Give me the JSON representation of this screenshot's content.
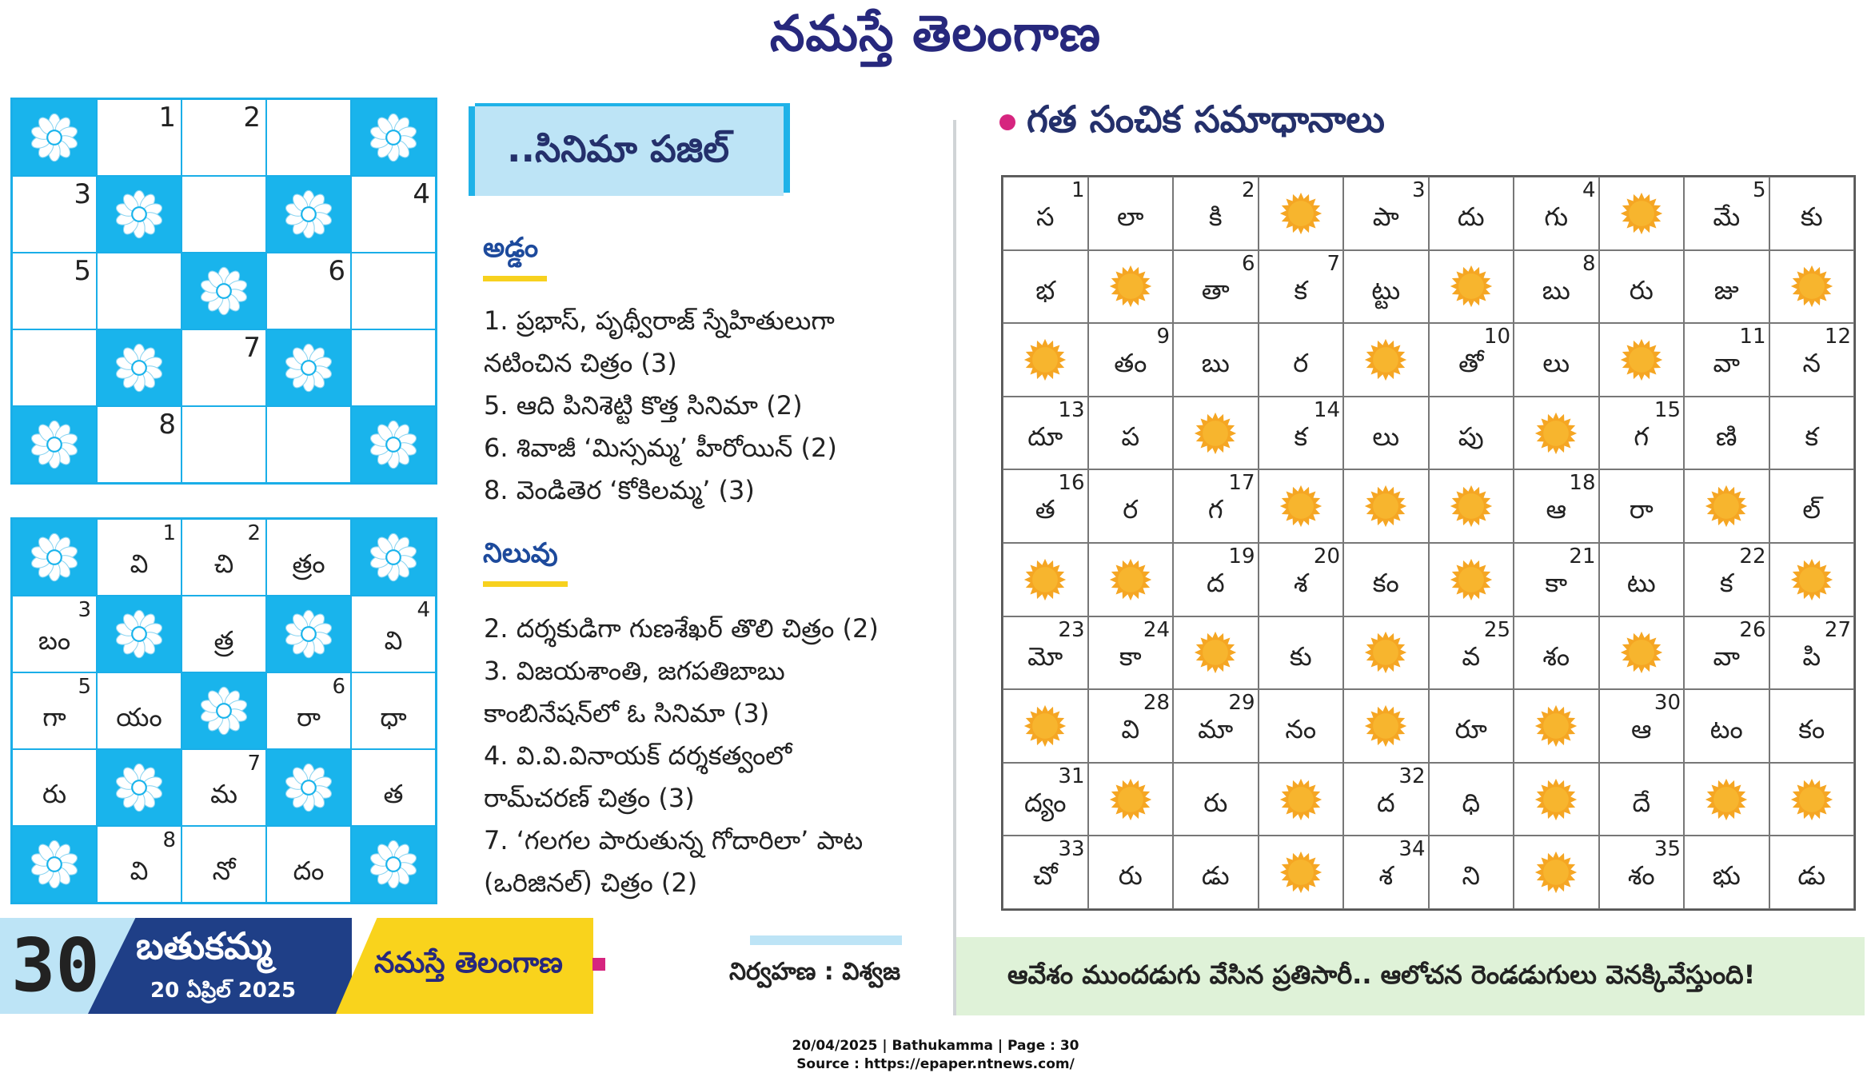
{
  "masthead": "నమస్తే తెలంగాణ",
  "puzzle": {
    "title": "..సినిమా పజిల్",
    "grid_cells": [
      {
        "t": "b"
      },
      {
        "t": "w",
        "n": "1"
      },
      {
        "t": "w",
        "n": "2"
      },
      {
        "t": "w"
      },
      {
        "t": "b"
      },
      {
        "t": "w",
        "n": "3"
      },
      {
        "t": "b"
      },
      {
        "t": "w"
      },
      {
        "t": "b"
      },
      {
        "t": "w",
        "n": "4"
      },
      {
        "t": "w",
        "n": "5"
      },
      {
        "t": "w"
      },
      {
        "t": "b"
      },
      {
        "t": "w",
        "n": "6"
      },
      {
        "t": "w"
      },
      {
        "t": "w"
      },
      {
        "t": "b"
      },
      {
        "t": "w",
        "n": "7"
      },
      {
        "t": "b"
      },
      {
        "t": "w"
      },
      {
        "t": "b"
      },
      {
        "t": "w",
        "n": "8"
      },
      {
        "t": "w"
      },
      {
        "t": "w"
      },
      {
        "t": "b"
      }
    ],
    "across_heading": "అడ్డం",
    "across": [
      "1. ప్రభాస్, పృథ్వీరాజ్ స్నేహితులుగా",
      "    నటించిన చిత్రం (3)",
      "5. ఆది పినిశెట్టి కొత్త సినిమా (2)",
      "6. శివాజీ ‘మిస్సమ్మ’ హీరోయిన్ (2)",
      "8. వెండితెర ‘కోకిలమ్మ’ (3)"
    ],
    "down_heading": "నిలువు",
    "down": [
      "2. దర్శకుడిగా గుణశేఖర్ తొలి చిత్రం (2)",
      "3. విజయశాంతి, జగపతిబాబు",
      "    కాంబినేషన్‌లో ఓ సినిమా (3)",
      "4. వి.వి.వినాయక్ దర్శకత్వంలో",
      "    రామ్‌చరణ్ చిత్రం (3)",
      "7. ‘గలగల పారుతున్న గోదారిలా’ పాట",
      "    (ఒరిజినల్) చిత్రం (2)"
    ]
  },
  "prev_small_solution": [
    {
      "t": "b"
    },
    {
      "t": "w",
      "n": "1",
      "c": "వి"
    },
    {
      "t": "w",
      "n": "2",
      "c": "చి"
    },
    {
      "t": "w",
      "c": "త్రం"
    },
    {
      "t": "b"
    },
    {
      "t": "w",
      "n": "3",
      "c": "బం"
    },
    {
      "t": "b"
    },
    {
      "t": "w",
      "c": "త్ర"
    },
    {
      "t": "b"
    },
    {
      "t": "w",
      "n": "4",
      "c": "వి"
    },
    {
      "t": "w",
      "n": "5",
      "c": "గా"
    },
    {
      "t": "w",
      "c": "యం"
    },
    {
      "t": "b"
    },
    {
      "t": "w",
      "n": "6",
      "c": "రా"
    },
    {
      "t": "w",
      "c": "ధా"
    },
    {
      "t": "w",
      "c": "రు"
    },
    {
      "t": "b"
    },
    {
      "t": "w",
      "n": "7",
      "c": "మ"
    },
    {
      "t": "b"
    },
    {
      "t": "w",
      "c": "త"
    },
    {
      "t": "b"
    },
    {
      "t": "w",
      "n": "8",
      "c": "వి"
    },
    {
      "t": "w",
      "c": "నో"
    },
    {
      "t": "w",
      "c": "దం"
    },
    {
      "t": "b"
    }
  ],
  "solutions": {
    "heading": "గత సంచిక సమాధానాలు",
    "cells": [
      [
        {
          "c": "స",
          "n": "1"
        },
        {
          "c": "లా"
        },
        {
          "c": "కి",
          "n": "2"
        },
        {
          "b": 1
        },
        {
          "c": "పా",
          "n": "3"
        },
        {
          "c": "దు"
        },
        {
          "c": "గు",
          "n": "4"
        },
        {
          "b": 1
        },
        {
          "c": "మే",
          "n": "5"
        },
        {
          "c": "కు"
        }
      ],
      [
        {
          "c": "భ"
        },
        {
          "b": 1
        },
        {
          "c": "తా",
          "n": "6"
        },
        {
          "c": "క",
          "n": "7"
        },
        {
          "c": "ట్టు"
        },
        {
          "b": 1
        },
        {
          "c": "బు",
          "n": "8"
        },
        {
          "c": "రు"
        },
        {
          "c": "జు"
        },
        {
          "b": 1
        }
      ],
      [
        {
          "b": 1
        },
        {
          "c": "తం",
          "n": "9"
        },
        {
          "c": "బు"
        },
        {
          "c": "ర"
        },
        {
          "b": 1
        },
        {
          "c": "తో",
          "n": "10"
        },
        {
          "c": "లు"
        },
        {
          "b": 1
        },
        {
          "c": "వా",
          "n": "11"
        },
        {
          "c": "న",
          "n": "12"
        }
      ],
      [
        {
          "c": "దూ",
          "n": "13"
        },
        {
          "c": "ప"
        },
        {
          "b": 1
        },
        {
          "c": "క",
          "n": "14"
        },
        {
          "c": "లు"
        },
        {
          "c": "పు"
        },
        {
          "b": 1
        },
        {
          "c": "గ",
          "n": "15"
        },
        {
          "c": "ణి"
        },
        {
          "c": "క"
        }
      ],
      [
        {
          "c": "త",
          "n": "16"
        },
        {
          "c": "ర"
        },
        {
          "c": "గ",
          "n": "17"
        },
        {
          "b": 1
        },
        {
          "b": 1
        },
        {
          "b": 1
        },
        {
          "c": "ఆ",
          "n": "18"
        },
        {
          "c": "రా"
        },
        {
          "b": 1
        },
        {
          "c": "ల్"
        }
      ],
      [
        {
          "b": 1
        },
        {
          "b": 1
        },
        {
          "c": "ద",
          "n": "19"
        },
        {
          "c": "శ",
          "n": "20"
        },
        {
          "c": "కం"
        },
        {
          "b": 1
        },
        {
          "c": "కా",
          "n": "21"
        },
        {
          "c": "టు"
        },
        {
          "c": "క",
          "n": "22"
        },
        {
          "b": 1
        }
      ],
      [
        {
          "c": "మో",
          "n": "23"
        },
        {
          "c": "కా",
          "n": "24"
        },
        {
          "b": 1
        },
        {
          "c": "కు"
        },
        {
          "b": 1
        },
        {
          "c": "వ",
          "n": "25"
        },
        {
          "c": "శం"
        },
        {
          "b": 1
        },
        {
          "c": "వా",
          "n": "26"
        },
        {
          "c": "పి",
          "n": "27"
        }
      ],
      [
        {
          "b": 1
        },
        {
          "c": "వి",
          "n": "28"
        },
        {
          "c": "మా",
          "n": "29"
        },
        {
          "c": "నం"
        },
        {
          "b": 1
        },
        {
          "c": "రూ"
        },
        {
          "b": 1
        },
        {
          "c": "ఆ",
          "n": "30"
        },
        {
          "c": "టం"
        },
        {
          "c": "కం"
        }
      ],
      [
        {
          "c": "ద్యం",
          "n": "31"
        },
        {
          "b": 1
        },
        {
          "c": "రు"
        },
        {
          "b": 1
        },
        {
          "c": "ద",
          "n": "32"
        },
        {
          "c": "ధి"
        },
        {
          "b": 1
        },
        {
          "c": "దే"
        },
        {
          "b": 1
        },
        {
          "b": 1
        }
      ],
      [
        {
          "c": "చో",
          "n": "33"
        },
        {
          "c": "రు"
        },
        {
          "c": "డు"
        },
        {
          "b": 1
        },
        {
          "c": "శ",
          "n": "34"
        },
        {
          "c": "ని"
        },
        {
          "b": 1
        },
        {
          "c": "శం",
          "n": "35"
        },
        {
          "c": "భు"
        },
        {
          "c": "డు"
        }
      ]
    ]
  },
  "quote": "ఆవేశం ముందడుగు వేసిన ప్రతిసారీ.. ఆలోచన రెండడుగులు వెనక్కివేస్తుంది!",
  "footer": {
    "page_number": "30",
    "section": "బతుకమ్మ",
    "date": "20 ఏప్రిల్ 2025",
    "brand": "నమస్తే తెలంగాణ",
    "credit": "నిర్వహణ : విశ్వజ"
  },
  "meta_line1": "20/04/2025 | Bathukamma | Page : 30",
  "meta_line2": "Source : https://epaper.ntnews.com/",
  "colors": {
    "grid_blue": "#19b4ec",
    "sun_orange": "#f5a623",
    "navy": "#27287d",
    "quote_green": "#dff2d8"
  }
}
